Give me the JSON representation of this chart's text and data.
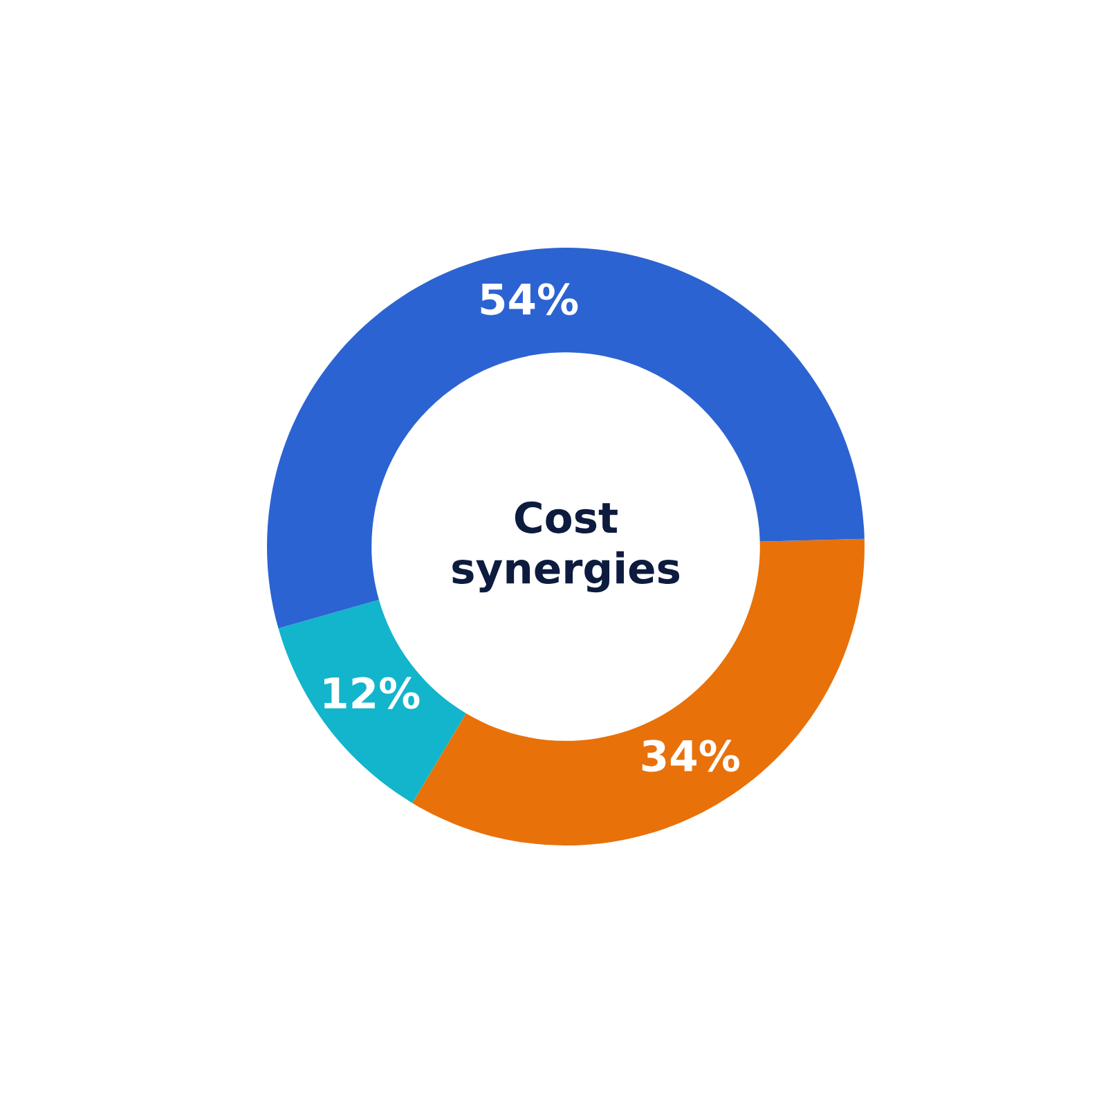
{
  "chart_data": {
    "type": "donut",
    "title": "Cost synergies",
    "categories": [
      null,
      null,
      null
    ],
    "values": [
      34,
      12,
      54
    ],
    "colors": [
      "#e8710a",
      "#12b5cb",
      "#2c63d2"
    ],
    "value_labels": [
      "34%",
      "12%",
      "54%"
    ]
  }
}
